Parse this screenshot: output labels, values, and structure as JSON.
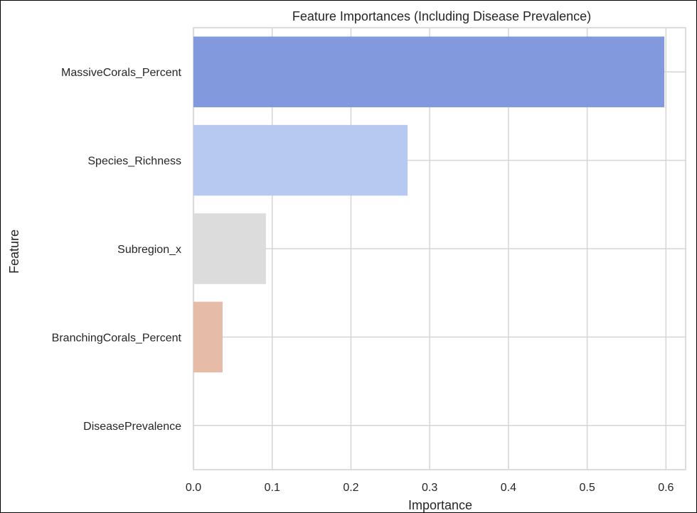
{
  "chart_data": {
    "type": "bar",
    "orientation": "horizontal",
    "title": "Feature Importances (Including Disease Prevalence)",
    "xlabel": "Importance",
    "ylabel": "Feature",
    "categories": [
      "MassiveCorals_Percent",
      "Species_Richness",
      "Subregion_x",
      "BranchingCorals_Percent",
      "DiseasePrevalence"
    ],
    "values": [
      0.598,
      0.272,
      0.092,
      0.037,
      0.0
    ],
    "bar_colors": [
      "#8399de",
      "#b8c9f1",
      "#dcdcdc",
      "#e6bba7",
      "#dd7e66"
    ],
    "xlim": [
      0,
      0.625
    ],
    "xticks": [
      0.0,
      0.1,
      0.2,
      0.3,
      0.4,
      0.5,
      0.6
    ],
    "xtick_labels": [
      "0.0",
      "0.1",
      "0.2",
      "0.3",
      "0.4",
      "0.5",
      "0.6"
    ],
    "grid": true,
    "legend": "none"
  }
}
